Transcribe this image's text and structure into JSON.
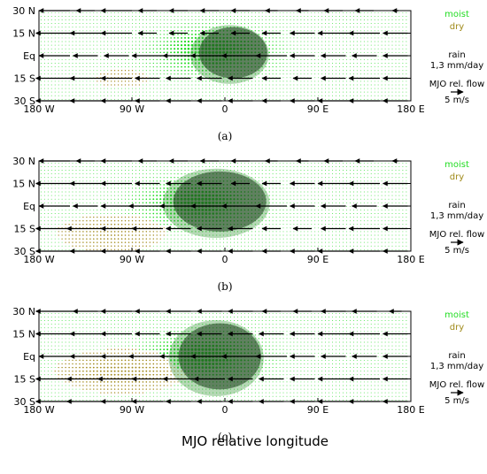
{
  "figure": {
    "x_title": "MJO relative longitude",
    "legend": {
      "moist": "moist",
      "dry": "dry",
      "rain_line1": "rain",
      "rain_line2": "1,3 mm/day",
      "flow_line1": "MJO rel. flow",
      "flow_line2": "5 m/s",
      "moist_color": "#22dd22",
      "dry_color": "#a08a1a"
    }
  },
  "chart_data": [
    {
      "type": "vector",
      "panel_label": "(a)",
      "x_tick_labels": [
        "180 W",
        "90 W",
        "0",
        "90 E",
        "180 E"
      ],
      "y_tick_labels": [
        "30 N",
        "15 N",
        "Eq",
        "15 S",
        "30 S"
      ],
      "x_ticks": [
        -180,
        -90,
        0,
        90,
        180
      ],
      "y_ticks": [
        30,
        15,
        0,
        -15,
        -30
      ],
      "xlim": [
        -180,
        180
      ],
      "ylim": [
        -30,
        30
      ],
      "rain_shading": {
        "lon_center": 8,
        "lat_center": 2,
        "lon_half_width": 33,
        "lat_half_width": 17
      },
      "moisture_anomaly": {
        "moist_lon_center": -10,
        "moist_lat_center": 3,
        "dry_lon_center": -100,
        "dry_lat_center": -15,
        "dry_strength": 0.3
      },
      "wind_rows": [
        {
          "lat": 30,
          "u": [
            -5,
            -3,
            -5,
            -3,
            -3,
            -3,
            -3,
            -2,
            -2,
            -3,
            -3,
            -1
          ]
        },
        {
          "lat": 15,
          "u": [
            -6,
            -5,
            -5,
            -3,
            -3,
            -3,
            -3,
            -3,
            -4,
            -5,
            -5,
            -4
          ]
        },
        {
          "lat": 0,
          "u": [
            -5,
            -4,
            -4,
            -5,
            -5,
            -6,
            -6,
            -5,
            -4,
            -4,
            -4,
            -4
          ]
        },
        {
          "lat": -15,
          "u": [
            -6,
            -5,
            -5,
            -4,
            -4,
            -4,
            -4,
            -3,
            -3,
            -4,
            -5,
            -4
          ]
        },
        {
          "lat": -30,
          "u": [
            -6,
            -5,
            -5,
            -4,
            -4,
            -4,
            -4,
            -3,
            -4,
            -5,
            -5,
            -4
          ]
        }
      ]
    },
    {
      "type": "vector",
      "panel_label": "(b)",
      "x_tick_labels": [
        "180 W",
        "90 W",
        "0",
        "90 E",
        "180 E"
      ],
      "y_tick_labels": [
        "30 N",
        "15 N",
        "Eq",
        "15 S",
        "30 S"
      ],
      "x_ticks": [
        -180,
        -90,
        0,
        90,
        180
      ],
      "y_ticks": [
        30,
        15,
        0,
        -15,
        -30
      ],
      "xlim": [
        -180,
        180
      ],
      "ylim": [
        -30,
        30
      ],
      "rain_shading": {
        "lon_center": -5,
        "lat_center": 3,
        "lon_half_width": 45,
        "lat_half_width": 20
      },
      "moisture_anomaly": {
        "moist_lon_center": -25,
        "moist_lat_center": 2,
        "dry_lon_center": -110,
        "dry_lat_center": -18,
        "dry_strength": 0.55
      },
      "wind_rows": [
        {
          "lat": 30,
          "u": [
            -5,
            -3,
            -5,
            -3,
            -3,
            -3,
            -3,
            -2,
            -2,
            -3,
            -3,
            -1
          ]
        },
        {
          "lat": 15,
          "u": [
            -6,
            -5,
            -5,
            -4,
            -4,
            -4,
            -3,
            -3,
            -4,
            -5,
            -5,
            -4
          ]
        },
        {
          "lat": 0,
          "u": [
            -5,
            -4,
            -5,
            -6,
            -6,
            -6,
            -6,
            -5,
            -4,
            -4,
            -4,
            -4
          ]
        },
        {
          "lat": -15,
          "u": [
            -6,
            -6,
            -5,
            -5,
            -4,
            -4,
            -4,
            -3,
            -3,
            -4,
            -5,
            -4
          ]
        },
        {
          "lat": -30,
          "u": [
            -6,
            -5,
            -5,
            -4,
            -4,
            -4,
            -4,
            -3,
            -4,
            -5,
            -5,
            -4
          ]
        }
      ]
    },
    {
      "type": "vector",
      "panel_label": "(c)",
      "x_tick_labels": [
        "180 W",
        "90 W",
        "0",
        "90 E",
        "180 E"
      ],
      "y_tick_labels": [
        "30 N",
        "15 N",
        "Eq",
        "15 S",
        "30 S"
      ],
      "x_ticks": [
        -180,
        -90,
        0,
        90,
        180
      ],
      "y_ticks": [
        30,
        15,
        0,
        -15,
        -30
      ],
      "xlim": [
        -180,
        180
      ],
      "ylim": [
        -30,
        30
      ],
      "rain_shading": {
        "lon_center": -5,
        "lat_center": 0,
        "lon_half_width": 40,
        "lat_half_width": 22
      },
      "moisture_anomaly": {
        "moist_lon_center": -20,
        "moist_lat_center": 0,
        "dry_lon_center": -100,
        "dry_lat_center": -10,
        "dry_strength": 0.8
      },
      "wind_rows": [
        {
          "lat": 30,
          "u": [
            -6,
            -4,
            -5,
            -4,
            -4,
            -4,
            -4,
            -3,
            -3,
            -4,
            -4,
            -2
          ]
        },
        {
          "lat": 15,
          "u": [
            -6,
            -5,
            -5,
            -4,
            -4,
            -4,
            -4,
            -4,
            -4,
            -5,
            -5,
            -4
          ]
        },
        {
          "lat": 0,
          "u": [
            -5,
            -5,
            -5,
            -6,
            -6,
            -6,
            -6,
            -5,
            -4,
            -4,
            -4,
            -4
          ]
        },
        {
          "lat": -15,
          "u": [
            -6,
            -6,
            -6,
            -5,
            -5,
            -5,
            -4,
            -4,
            -4,
            -5,
            -5,
            -4
          ]
        },
        {
          "lat": -30,
          "u": [
            -6,
            -6,
            -5,
            -5,
            -4,
            -4,
            -4,
            -4,
            -4,
            -5,
            -5,
            -4
          ]
        }
      ]
    }
  ]
}
